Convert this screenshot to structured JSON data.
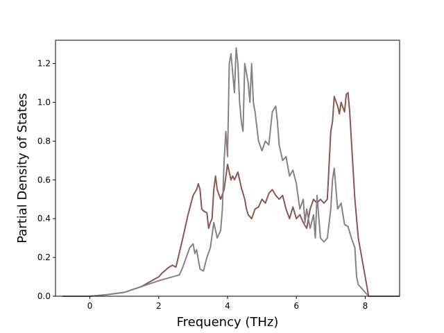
{
  "chart_data": {
    "type": "line",
    "title": "",
    "xlabel": "Frequency (THz)",
    "ylabel": "Partial Density of States",
    "xlim": [
      -1.0,
      9.0
    ],
    "ylim": [
      0.0,
      1.32
    ],
    "xticks": [
      0,
      2,
      4,
      6,
      8
    ],
    "xtick_labels": [
      "0",
      "2",
      "4",
      "6",
      "8"
    ],
    "yticks": [
      0.0,
      0.2,
      0.4,
      0.6,
      0.8,
      1.0,
      1.2
    ],
    "ytick_labels": [
      "0.0",
      "0.2",
      "0.4",
      "0.6",
      "0.8",
      "1.0",
      "1.2"
    ],
    "grid": false,
    "legend": "none",
    "series": [
      {
        "color": "#8c564b",
        "x": [
          -0.8,
          0.0,
          0.5,
          1.0,
          1.5,
          2.0,
          2.1,
          2.3,
          2.4,
          2.5,
          2.7,
          2.85,
          3.0,
          3.1,
          3.15,
          3.2,
          3.25,
          3.3,
          3.4,
          3.45,
          3.5,
          3.55,
          3.6,
          3.65,
          3.7,
          3.8,
          3.9,
          4.0,
          4.1,
          4.15,
          4.2,
          4.3,
          4.4,
          4.5,
          4.55,
          4.6,
          4.7,
          4.8,
          4.9,
          5.0,
          5.1,
          5.2,
          5.3,
          5.4,
          5.5,
          5.6,
          5.7,
          5.8,
          5.9,
          6.0,
          6.1,
          6.2,
          6.3,
          6.4,
          6.5,
          6.6,
          6.7,
          6.8,
          6.9,
          7.0,
          7.05,
          7.1,
          7.2,
          7.25,
          7.3,
          7.4,
          7.45,
          7.5,
          7.55,
          7.6,
          7.7,
          7.8,
          7.9,
          8.0,
          8.1
        ],
        "y": [
          0.0,
          0.0,
          0.008,
          0.02,
          0.05,
          0.1,
          0.12,
          0.15,
          0.16,
          0.15,
          0.3,
          0.42,
          0.52,
          0.55,
          0.58,
          0.55,
          0.45,
          0.44,
          0.43,
          0.35,
          0.38,
          0.4,
          0.55,
          0.62,
          0.55,
          0.5,
          0.55,
          0.68,
          0.6,
          0.62,
          0.6,
          0.64,
          0.56,
          0.5,
          0.45,
          0.42,
          0.4,
          0.45,
          0.46,
          0.5,
          0.48,
          0.53,
          0.55,
          0.52,
          0.5,
          0.52,
          0.45,
          0.4,
          0.46,
          0.4,
          0.42,
          0.38,
          0.35,
          0.45,
          0.5,
          0.48,
          0.5,
          0.48,
          0.5,
          0.85,
          0.9,
          1.03,
          0.98,
          0.94,
          1.0,
          0.95,
          1.04,
          1.05,
          0.95,
          0.8,
          0.5,
          0.3,
          0.2,
          0.1,
          0.0
        ]
      },
      {
        "color": "#8a7f87",
        "x": [
          -0.8,
          0.0,
          0.5,
          1.0,
          1.5,
          2.0,
          2.2,
          2.4,
          2.6,
          2.7,
          2.8,
          2.9,
          3.0,
          3.05,
          3.1,
          3.2,
          3.3,
          3.4,
          3.5,
          3.6,
          3.7,
          3.8,
          3.85,
          3.9,
          3.95,
          4.0,
          4.05,
          4.1,
          4.15,
          4.2,
          4.25,
          4.3,
          4.35,
          4.4,
          4.45,
          4.5,
          4.6,
          4.65,
          4.7,
          4.75,
          4.8,
          4.9,
          5.0,
          5.1,
          5.2,
          5.3,
          5.4,
          5.45,
          5.5,
          5.6,
          5.7,
          5.8,
          5.9,
          6.0,
          6.1,
          6.2,
          6.25,
          6.3,
          6.4,
          6.5,
          6.55,
          6.6,
          6.7,
          6.8,
          6.9,
          7.0,
          7.05,
          7.1,
          7.2,
          7.3,
          7.4,
          7.5,
          7.6,
          7.7,
          7.75,
          7.8,
          7.9,
          8.0,
          8.1,
          8.3,
          8.5,
          9.0
        ],
        "y": [
          0.0,
          0.0,
          0.008,
          0.02,
          0.05,
          0.08,
          0.09,
          0.1,
          0.11,
          0.15,
          0.2,
          0.25,
          0.27,
          0.22,
          0.24,
          0.14,
          0.13,
          0.2,
          0.25,
          0.38,
          0.3,
          0.34,
          0.45,
          0.7,
          0.85,
          0.72,
          1.2,
          1.25,
          1.15,
          1.05,
          1.28,
          1.2,
          1.0,
          0.9,
          0.85,
          1.2,
          1.1,
          1.0,
          1.2,
          1.0,
          0.95,
          0.8,
          0.75,
          0.8,
          0.78,
          0.95,
          0.98,
          0.9,
          0.78,
          0.7,
          0.72,
          0.62,
          0.65,
          0.58,
          0.45,
          0.5,
          0.38,
          0.45,
          0.35,
          0.42,
          0.3,
          0.52,
          0.3,
          0.28,
          0.3,
          0.45,
          0.6,
          0.66,
          0.45,
          0.48,
          0.37,
          0.36,
          0.3,
          0.25,
          0.1,
          0.06,
          0.04,
          0.02,
          0.0,
          0.0,
          0.0,
          0.0
        ]
      }
    ]
  }
}
